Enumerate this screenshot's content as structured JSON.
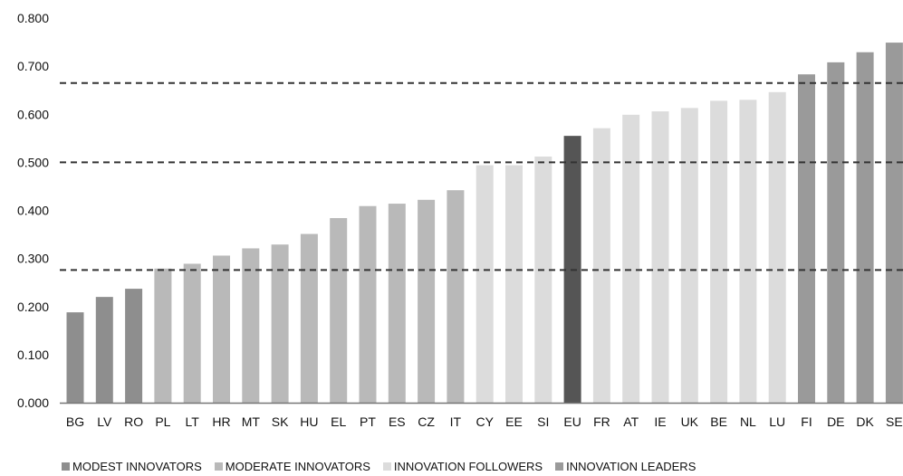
{
  "chart_data": {
    "type": "bar",
    "title": "",
    "xlabel": "",
    "ylabel": "",
    "ylim": [
      0,
      0.8
    ],
    "yticks": [
      "0.000",
      "0.100",
      "0.200",
      "0.300",
      "0.400",
      "0.500",
      "0.600",
      "0.700",
      "0.800"
    ],
    "categories": [
      "BG",
      "LV",
      "RO",
      "PL",
      "LT",
      "HR",
      "MT",
      "SK",
      "HU",
      "EL",
      "PT",
      "ES",
      "CZ",
      "IT",
      "CY",
      "EE",
      "SI",
      "EU",
      "FR",
      "AT",
      "IE",
      "UK",
      "BE",
      "NL",
      "LU",
      "FI",
      "DE",
      "DK",
      "SE"
    ],
    "values": [
      0.188,
      0.22,
      0.237,
      0.279,
      0.289,
      0.306,
      0.321,
      0.329,
      0.351,
      0.384,
      0.409,
      0.414,
      0.422,
      0.442,
      0.494,
      0.494,
      0.512,
      0.555,
      0.571,
      0.599,
      0.606,
      0.613,
      0.628,
      0.63,
      0.646,
      0.683,
      0.708,
      0.729,
      0.749
    ],
    "groups": [
      "modest",
      "modest",
      "modest",
      "moderate",
      "moderate",
      "moderate",
      "moderate",
      "moderate",
      "moderate",
      "moderate",
      "moderate",
      "moderate",
      "moderate",
      "moderate",
      "follower",
      "follower",
      "follower",
      "eu",
      "follower",
      "follower",
      "follower",
      "follower",
      "follower",
      "follower",
      "follower",
      "leader",
      "leader",
      "leader",
      "leader"
    ],
    "thresholds": [
      0.276,
      0.5,
      0.665
    ],
    "legend_position": "bottom",
    "grid": false,
    "colors": {
      "modest": "#8e8e8e",
      "moderate": "#b9b9b9",
      "follower": "#dcdcdc",
      "eu": "#555555",
      "leader": "#9a9a9a",
      "threshold": "#333333",
      "axis": "#777777"
    },
    "legend": [
      {
        "label": "MODEST INNOVATORS",
        "group": "modest"
      },
      {
        "label": "MODERATE INNOVATORS",
        "group": "moderate"
      },
      {
        "label": "INNOVATION FOLLOWERS",
        "group": "follower"
      },
      {
        "label": "INNOVATION LEADERS",
        "group": "leader"
      }
    ]
  }
}
